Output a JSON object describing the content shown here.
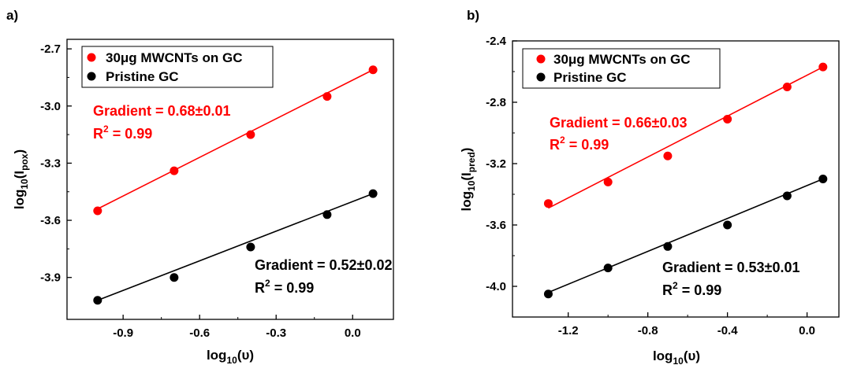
{
  "chart_data": [
    {
      "panel_label": "a)",
      "type": "scatter",
      "xlabel": "log₁₀(υ)",
      "ylabel": "log₁₀(Iₚₒₓ)",
      "xlim": [
        -1.12,
        0.16
      ],
      "ylim": [
        -4.12,
        -2.65
      ],
      "x_ticks": [
        -0.9,
        -0.6,
        -0.3,
        0.0
      ],
      "x_tick_labels": [
        "-0.9",
        "-0.6",
        "-0.3",
        "0.0"
      ],
      "y_ticks": [
        -3.9,
        -3.6,
        -3.3,
        -3.0,
        -2.7
      ],
      "y_tick_labels": [
        "-3.9",
        "-3.6",
        "-3.3",
        "-3.0",
        "-2.7"
      ],
      "legend_position": "top-left",
      "series": [
        {
          "name": "30μg MWCNTs on GC",
          "color": "#ff0000",
          "x": [
            -1.0,
            -0.7,
            -0.4,
            -0.1,
            0.08
          ],
          "y": [
            -3.55,
            -3.34,
            -3.15,
            -2.95,
            -2.81
          ],
          "fit": {
            "x": [
              -1.0,
              0.08
            ],
            "y": [
              -3.54,
              -2.81
            ]
          },
          "annotation": {
            "gradient": "Gradient = 0.68±0.01",
            "r2_label": "R",
            "r2_value": " = 0.99"
          }
        },
        {
          "name": "Pristine GC",
          "color": "#000000",
          "x": [
            -1.0,
            -0.7,
            -0.4,
            -0.1,
            0.08
          ],
          "y": [
            -4.02,
            -3.9,
            -3.74,
            -3.57,
            -3.46
          ],
          "fit": {
            "x": [
              -1.0,
              0.08
            ],
            "y": [
              -4.02,
              -3.46
            ]
          },
          "annotation": {
            "gradient": "Gradient = 0.52±0.02",
            "r2_label": "R",
            "r2_value": " = 0.99"
          }
        }
      ]
    },
    {
      "panel_label": "b)",
      "type": "scatter",
      "xlabel": "log₁₀(υ)",
      "ylabel": "log₁₀(Iₚᵣₑd)",
      "xlim": [
        -1.48,
        0.16
      ],
      "ylim": [
        -4.2,
        -2.4
      ],
      "x_ticks": [
        -1.2,
        -0.8,
        -0.4,
        0.0
      ],
      "x_tick_labels": [
        "-1.2",
        "-0.8",
        "-0.4",
        "0.0"
      ],
      "y_ticks": [
        -4.0,
        -3.6,
        -3.2,
        -2.8,
        -2.4
      ],
      "y_tick_labels": [
        "-4.0",
        "-3.6",
        "-3.2",
        "-2.8",
        "-2.4"
      ],
      "legend_position": "top-left",
      "series": [
        {
          "name": "30μg MWCNTs on GC",
          "color": "#ff0000",
          "x": [
            -1.3,
            -1.0,
            -0.7,
            -0.4,
            -0.1,
            0.08
          ],
          "y": [
            -3.46,
            -3.32,
            -3.15,
            -2.91,
            -2.7,
            -2.57
          ],
          "fit": {
            "x": [
              -1.3,
              0.08
            ],
            "y": [
              -3.49,
              -2.57
            ]
          },
          "annotation": {
            "gradient": "Gradient = 0.66±0.03",
            "r2_label": "R",
            "r2_value": " = 0.99"
          }
        },
        {
          "name": "Pristine GC",
          "color": "#000000",
          "x": [
            -1.3,
            -1.0,
            -0.7,
            -0.4,
            -0.1,
            0.08
          ],
          "y": [
            -4.05,
            -3.88,
            -3.74,
            -3.6,
            -3.41,
            -3.3
          ],
          "fit": {
            "x": [
              -1.3,
              0.08
            ],
            "y": [
              -4.04,
              -3.3
            ]
          },
          "annotation": {
            "gradient": "Gradient = 0.53±0.01",
            "r2_label": "R",
            "r2_value": " = 0.99"
          }
        }
      ]
    }
  ]
}
